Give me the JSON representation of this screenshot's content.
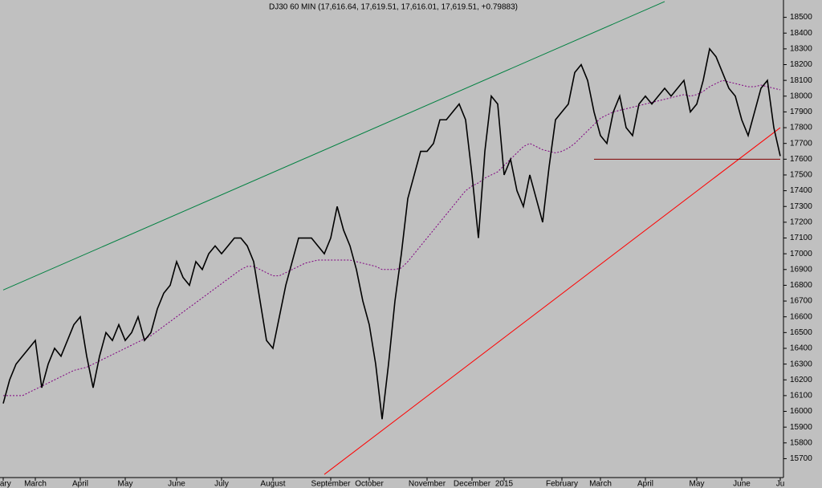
{
  "chart_data": {
    "type": "line",
    "title": "DJ30 60 MIN (17,616.64, 17,619.51, 17,616.01, 17,619.51, +0.79883)",
    "categories": [
      "uary",
      null,
      null,
      null,
      null,
      "March",
      null,
      null,
      null,
      null,
      null,
      null,
      "April",
      null,
      null,
      null,
      null,
      null,
      null,
      "May",
      null,
      null,
      null,
      null,
      null,
      null,
      null,
      "June",
      null,
      null,
      null,
      null,
      null,
      null,
      "July",
      null,
      null,
      null,
      null,
      null,
      null,
      null,
      "August",
      null,
      null,
      null,
      null,
      null,
      null,
      null,
      null,
      "September",
      null,
      null,
      null,
      null,
      null,
      "October",
      null,
      null,
      null,
      null,
      null,
      null,
      null,
      null,
      "November",
      null,
      null,
      null,
      null,
      null,
      null,
      "December",
      null,
      null,
      null,
      null,
      "2015",
      null,
      null,
      null,
      null,
      null,
      null,
      null,
      null,
      "February",
      null,
      null,
      null,
      null,
      null,
      "March",
      null,
      null,
      null,
      null,
      null,
      null,
      "April",
      null,
      null,
      null,
      null,
      null,
      null,
      null,
      "May",
      null,
      null,
      null,
      null,
      null,
      null,
      "June",
      null,
      null,
      null,
      null,
      null,
      "Ju"
    ],
    "series": [
      {
        "color": "#000000",
        "values": [
          16050,
          16200,
          16300,
          16350,
          16400,
          16450,
          16150,
          16300,
          16400,
          16350,
          16450,
          16550,
          16600,
          16350,
          16150,
          16350,
          16500,
          16450,
          16550,
          16450,
          16500,
          16600,
          16450,
          16500,
          16650,
          16750,
          16800,
          16950,
          16850,
          16800,
          16950,
          16900,
          17000,
          17050,
          17000,
          17050,
          17100,
          17100,
          17050,
          16950,
          16700,
          16450,
          16400,
          16600,
          16800,
          16950,
          17100,
          17100,
          17100,
          17050,
          17000,
          17100,
          17300,
          17150,
          17050,
          16900,
          16700,
          16550,
          16300,
          15950,
          16300,
          16700,
          17000,
          17350,
          17500,
          17650,
          17650,
          17700,
          17850,
          17850,
          17900,
          17950,
          17850,
          17500,
          17100,
          17650,
          18000,
          17950,
          17500,
          17600,
          17400,
          17300,
          17500,
          17350,
          17200,
          17550,
          17850,
          17900,
          17950,
          18150,
          18200,
          18100,
          17900,
          17750,
          17700,
          17900,
          18000,
          17800,
          17750,
          17950,
          18000,
          17950,
          18000,
          18050,
          18000,
          18050,
          18100,
          17900,
          17950,
          18100,
          18300,
          18250,
          18150,
          18050,
          18000,
          17850,
          17750,
          17900,
          18050,
          18100,
          17800,
          17620
        ]
      },
      {
        "color": "#800080",
        "dashed": true,
        "values": [
          16100,
          16100,
          16100,
          16100,
          16120,
          16140,
          16160,
          16180,
          16200,
          16220,
          16240,
          16260,
          16270,
          16280,
          16300,
          16320,
          16340,
          16360,
          16380,
          16400,
          16420,
          16440,
          16460,
          16480,
          16510,
          16540,
          16570,
          16600,
          16630,
          16660,
          16690,
          16720,
          16750,
          16780,
          16810,
          16840,
          16870,
          16900,
          16920,
          16920,
          16900,
          16880,
          16860,
          16860,
          16880,
          16900,
          16920,
          16940,
          16950,
          16960,
          16960,
          16960,
          16960,
          16960,
          16960,
          16950,
          16940,
          16930,
          16920,
          16900,
          16900,
          16900,
          16910,
          16950,
          17000,
          17050,
          17100,
          17150,
          17200,
          17250,
          17300,
          17350,
          17400,
          17430,
          17450,
          17480,
          17500,
          17520,
          17560,
          17600,
          17640,
          17680,
          17700,
          17680,
          17660,
          17650,
          17640,
          17650,
          17670,
          17700,
          17740,
          17780,
          17820,
          17860,
          17880,
          17900,
          17910,
          17920,
          17930,
          17940,
          17950,
          17960,
          17970,
          17980,
          17990,
          18000,
          18010,
          18000,
          18010,
          18030,
          18060,
          18080,
          18100,
          18090,
          18080,
          18070,
          18060,
          18060,
          18070,
          18060,
          18050,
          18040
        ]
      }
    ],
    "trendlines": [
      {
        "color": "#008040",
        "x": [
          0,
          103
        ],
        "values": [
          16770,
          18600
        ]
      },
      {
        "color": "#ff0000",
        "x": [
          50,
          121
        ],
        "values": [
          15600,
          17800
        ]
      },
      {
        "color": "#800000",
        "x": [
          92,
          121
        ],
        "values": [
          17600,
          17600
        ]
      }
    ],
    "ylim": [
      15580,
      18610
    ],
    "yticks": [
      15700,
      15800,
      15900,
      16000,
      16100,
      16200,
      16300,
      16400,
      16500,
      16600,
      16700,
      16800,
      16900,
      17000,
      17100,
      17200,
      17300,
      17400,
      17500,
      17600,
      17700,
      17800,
      17900,
      18000,
      18100,
      18200,
      18300,
      18400,
      18500
    ]
  }
}
